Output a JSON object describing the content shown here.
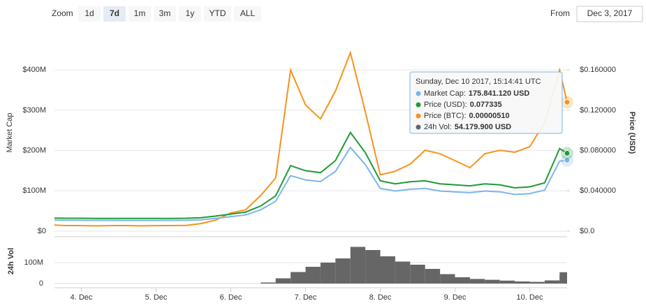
{
  "chart_data": {
    "type": "line",
    "zoom_label": "Zoom",
    "zoom_buttons": [
      "1d",
      "7d",
      "1m",
      "3m",
      "1y",
      "YTD",
      "ALL"
    ],
    "zoom_selected": "7d",
    "from_label": "From",
    "from_date": "Dec 3, 2017",
    "ylabel": "Market Cap",
    "y2label": "Price (USD)",
    "vol_label": "24h Vol",
    "x": [
      3.64,
      3.8,
      4.0,
      4.2,
      4.4,
      4.6,
      4.8,
      5.0,
      5.2,
      5.4,
      5.6,
      5.8,
      6.0,
      6.2,
      6.4,
      6.6,
      6.8,
      7.0,
      7.2,
      7.4,
      7.6,
      7.8,
      8.0,
      8.2,
      8.4,
      8.6,
      8.8,
      9.0,
      9.2,
      9.4,
      9.6,
      9.8,
      10.0,
      10.2,
      10.4,
      10.5
    ],
    "xlim": [
      3.64,
      10.5
    ],
    "xticks": [
      {
        "value": 4,
        "label": "4. Dec"
      },
      {
        "value": 5,
        "label": "5. Dec"
      },
      {
        "value": 6,
        "label": "6. Dec"
      },
      {
        "value": 7,
        "label": "7. Dec"
      },
      {
        "value": 8,
        "label": "8. Dec"
      },
      {
        "value": 9,
        "label": "9. Dec"
      },
      {
        "value": 10,
        "label": "10. Dec"
      }
    ],
    "ylim": [
      0,
      480000000
    ],
    "yticks": [
      {
        "value": 0,
        "label": "$0"
      },
      {
        "value": 100000000,
        "label": "$100M"
      },
      {
        "value": 200000000,
        "label": "$200M"
      },
      {
        "value": 300000000,
        "label": "$300M"
      },
      {
        "value": 400000000,
        "label": "$400M"
      }
    ],
    "y2lim": [
      0,
      0.192
    ],
    "y2ticks": [
      {
        "value": 0,
        "label": "$0.0"
      },
      {
        "value": 0.04,
        "label": "$0.040000"
      },
      {
        "value": 0.08,
        "label": "$0.080000"
      },
      {
        "value": 0.12,
        "label": "$0.120000"
      },
      {
        "value": 0.16,
        "label": "$0.160000"
      }
    ],
    "y3lim": [
      0,
      7.65e-06
    ],
    "vol_ylim": [
      0,
      200000000
    ],
    "vol_yticks": [
      0,
      {
        "value": 100000000,
        "label": "100M"
      }
    ],
    "grid": true,
    "series": [
      {
        "name": "Market Cap",
        "color": "#7cb5ec",
        "axis": "y",
        "values": [
          27600000,
          27100000,
          27100000,
          26900000,
          26900000,
          26700000,
          26700000,
          26700000,
          26900000,
          27100000,
          28200000,
          31800000,
          36000000,
          40300000,
          53000000,
          74200000,
          137800000,
          127200000,
          123000000,
          148400000,
          207800000,
          165400000,
          106000000,
          99600000,
          103900000,
          106000000,
          99600000,
          97500000,
          95400000,
          99600000,
          97500000,
          91200000,
          93300000,
          101800000,
          173800000,
          175841120
        ]
      },
      {
        "name": "Price (USD)",
        "color": "#1f9a37",
        "axis": "y2",
        "values": [
          0.013,
          0.0128,
          0.0128,
          0.0127,
          0.0127,
          0.0126,
          0.0126,
          0.0126,
          0.0127,
          0.0128,
          0.0133,
          0.015,
          0.017,
          0.019,
          0.025,
          0.035,
          0.065,
          0.06,
          0.058,
          0.07,
          0.098,
          0.078,
          0.05,
          0.047,
          0.049,
          0.05,
          0.047,
          0.046,
          0.045,
          0.047,
          0.046,
          0.043,
          0.044,
          0.048,
          0.082,
          0.077335
        ]
      },
      {
        "name": "Price (BTC)",
        "color": "#f7931a",
        "axis": "y3",
        "values": [
          2.4e-07,
          2.2e-07,
          2.2e-07,
          2.1e-07,
          2.2e-07,
          2.2e-07,
          2.1e-07,
          2.2e-07,
          2.2e-07,
          2.3e-07,
          3e-07,
          4.4e-07,
          7.2e-07,
          8.5e-07,
          1.41e-06,
          2.1e-06,
          6.37e-06,
          4.99e-06,
          4.44e-06,
          5.54e-06,
          7.06e-06,
          4.72e-06,
          2.23e-06,
          2.37e-06,
          2.65e-06,
          3.2e-06,
          3.06e-06,
          2.79e-06,
          2.51e-06,
          3.06e-06,
          3.2e-06,
          3.12e-06,
          3.34e-06,
          4.3e-06,
          6.37e-06,
          5.1e-06
        ]
      },
      {
        "name": "24h Vol",
        "color": "#666666",
        "axis": "vol",
        "values": [
          300000,
          300000,
          300000,
          300000,
          300000,
          300000,
          300000,
          300000,
          300000,
          300000,
          300000,
          300000,
          300000,
          300000,
          5000000,
          25000000,
          55000000,
          80000000,
          100000000,
          120000000,
          175000000,
          160000000,
          130000000,
          105000000,
          90000000,
          70000000,
          45000000,
          30000000,
          22000000,
          18000000,
          14000000,
          10000000,
          8000000,
          15000000,
          40000000,
          54179900
        ]
      }
    ],
    "tooltip": {
      "date": "Sunday, Dec 10 2017, 15:14:41 UTC",
      "rows": [
        {
          "label": "Market Cap:",
          "value": "175.841.120 USD"
        },
        {
          "label": "Price (USD):",
          "value": "0.077335"
        },
        {
          "label": "Price (BTC):",
          "value": "0.00000510"
        },
        {
          "label": "24h Vol:",
          "value": "54.179.900 USD"
        }
      ]
    }
  }
}
